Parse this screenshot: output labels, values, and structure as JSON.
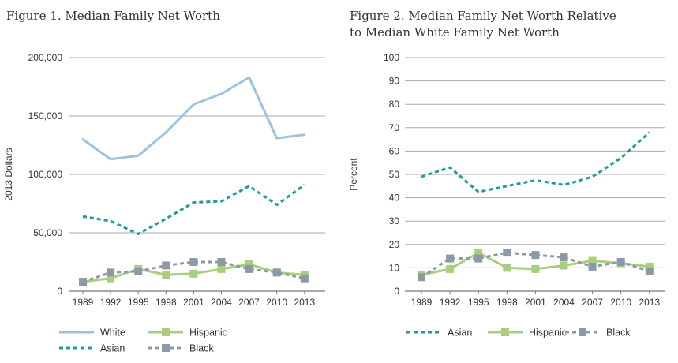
{
  "chart_data": [
    {
      "type": "line",
      "title": "Figure 1. Median Family Net Worth",
      "xlabel": "",
      "ylabel": "2013 Dollars",
      "categories": [
        "1989",
        "1992",
        "1995",
        "1998",
        "2001",
        "2004",
        "2007",
        "2010",
        "2013"
      ],
      "y_ticks": [
        "0",
        "50,000",
        "100,000",
        "150,000",
        "200,000"
      ],
      "ylim": [
        0,
        200000
      ],
      "grid": true,
      "legend_position": "bottom",
      "series": [
        {
          "name": "White",
          "style": "solid",
          "color": "#9dc3df",
          "values": [
            130000,
            113000,
            116000,
            136000,
            160000,
            169000,
            183000,
            131000,
            134000
          ]
        },
        {
          "name": "Asian",
          "style": "dashed",
          "color": "#1a9e98",
          "values": [
            64000,
            60000,
            49000,
            62000,
            76000,
            77000,
            90000,
            74000,
            91000
          ]
        },
        {
          "name": "Hispanic",
          "style": "solid-square",
          "color": "#a9cf7e",
          "values": [
            8000,
            11000,
            19000,
            14000,
            15000,
            19000,
            23000,
            16000,
            14000
          ]
        },
        {
          "name": "Black",
          "style": "dashed-square",
          "color": "#8c9aa8",
          "values": [
            8000,
            16000,
            17000,
            22000,
            25000,
            25000,
            19000,
            16000,
            11000
          ]
        }
      ],
      "legend_order": [
        0,
        2,
        1,
        3
      ]
    },
    {
      "type": "line",
      "title": "Figure 2. Median Family Net Worth Relative to Median White Family Net Worth",
      "title_lines": [
        "Figure 2. Median Family Net Worth Relative",
        "to Median White Family Net Worth"
      ],
      "xlabel": "",
      "ylabel": "Percent",
      "categories": [
        "1989",
        "1992",
        "1995",
        "1998",
        "2001",
        "2004",
        "2007",
        "2010",
        "2013"
      ],
      "y_ticks": [
        "0",
        "10",
        "20",
        "30",
        "40",
        "50",
        "60",
        "70",
        "80",
        "90",
        "100"
      ],
      "ylim": [
        0,
        100
      ],
      "grid": true,
      "legend_position": "bottom",
      "series": [
        {
          "name": "Asian",
          "style": "dashed",
          "color": "#1a9e98",
          "values": [
            49,
            53,
            42.5,
            45,
            47.5,
            45.5,
            49,
            57,
            68
          ]
        },
        {
          "name": "Hispanic",
          "style": "solid-square",
          "color": "#a9cf7e",
          "values": [
            7,
            9.5,
            16.5,
            10,
            9.5,
            11,
            13,
            12,
            10.5
          ]
        },
        {
          "name": "Black",
          "style": "dashed-square",
          "color": "#8c9aa8",
          "values": [
            6,
            14,
            14,
            16.5,
            15.5,
            14.5,
            10.5,
            12.5,
            8.5
          ]
        }
      ],
      "legend_order": [
        0,
        1,
        2
      ]
    }
  ]
}
